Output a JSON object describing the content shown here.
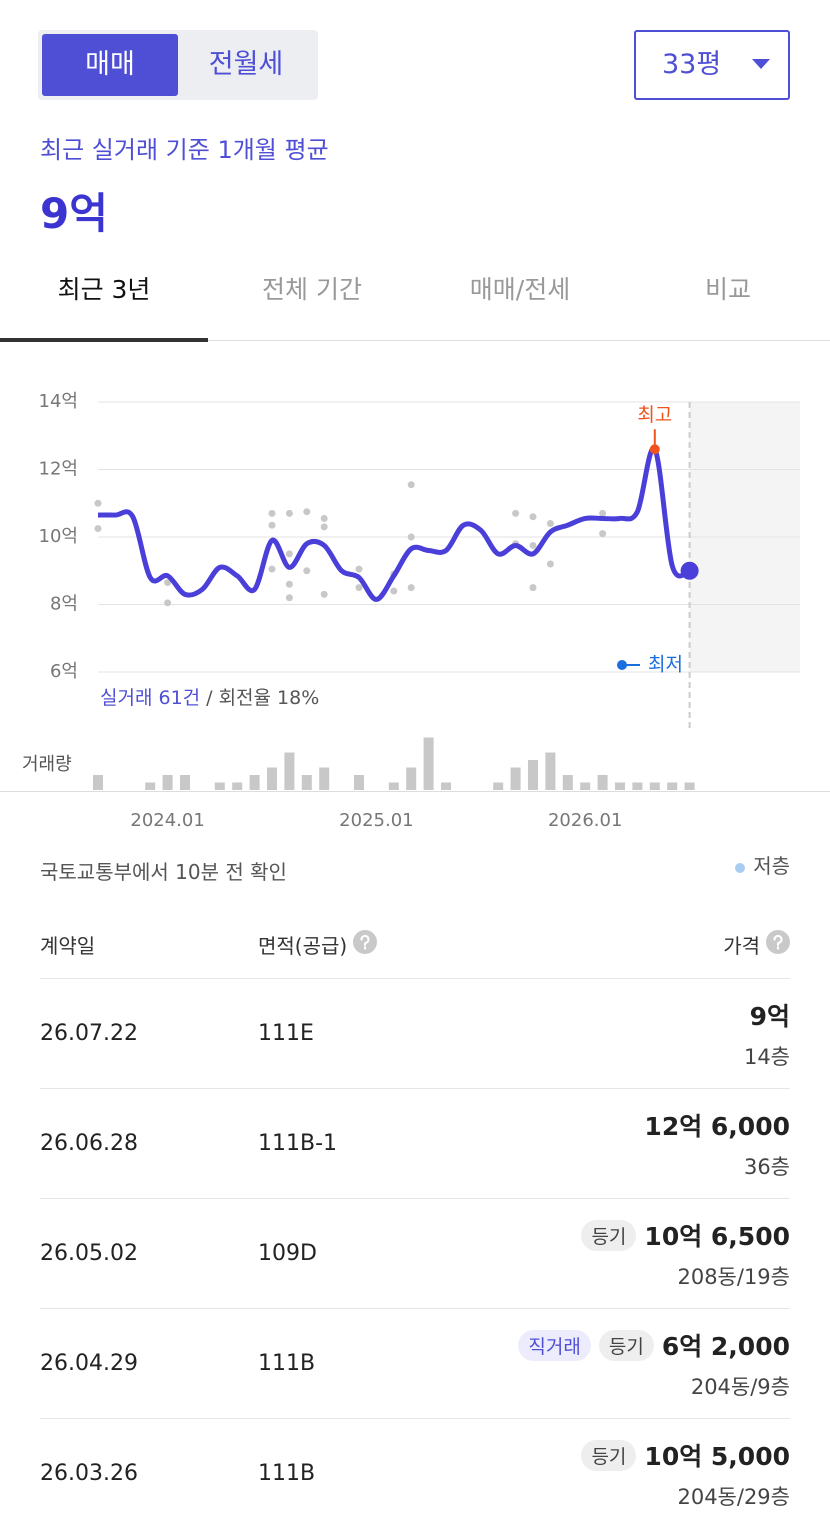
{
  "header": {
    "trade_tabs": [
      "매매",
      "전월세"
    ],
    "active_trade_tab": 0,
    "size_select": "33평"
  },
  "summary": {
    "caption": "최근 실거래 기준 1개월 평균",
    "value": "9억"
  },
  "period_tabs": [
    "최근 3년",
    "전체 기간",
    "매매/전세",
    "비교"
  ],
  "active_period_tab": 0,
  "chart": {
    "type": "line",
    "color": "#4a3fd8",
    "x": [
      "2023.09",
      "2023.10",
      "2023.11",
      "2023.12",
      "2024.01",
      "2024.02",
      "2024.03",
      "2024.04",
      "2024.05",
      "2024.06",
      "2024.07",
      "2024.08",
      "2024.09",
      "2024.10",
      "2024.11",
      "2024.12",
      "2025.01",
      "2025.02",
      "2025.03",
      "2025.04",
      "2025.05",
      "2025.06",
      "2025.07",
      "2025.08",
      "2025.09",
      "2025.10",
      "2025.11",
      "2025.12",
      "2026.01",
      "2026.02",
      "2026.03",
      "2026.04",
      "2026.05",
      "2026.06",
      "2026.07"
    ],
    "values": [
      10.65,
      10.65,
      10.6,
      8.8,
      8.85,
      8.3,
      8.45,
      9.1,
      8.85,
      8.45,
      9.9,
      9.1,
      9.8,
      9.75,
      9.0,
      8.8,
      8.15,
      8.85,
      9.65,
      9.6,
      9.6,
      10.35,
      10.2,
      9.5,
      9.75,
      9.5,
      10.15,
      10.35,
      10.55,
      10.55,
      10.55,
      10.75,
      12.6,
      9.15,
      9.0
    ],
    "ylim": [
      6,
      14
    ],
    "yticks": [
      {
        "value": 6,
        "label": "6억"
      },
      {
        "value": 8,
        "label": "8억"
      },
      {
        "value": 10,
        "label": "10억"
      },
      {
        "value": 12,
        "label": "12억"
      },
      {
        "value": 14,
        "label": "14억"
      }
    ],
    "xticks": [
      "2024.01",
      "2025.01",
      "2026.01"
    ],
    "grid": true,
    "points": {
      "color": "#c8c8c8",
      "x": [
        "2023.09",
        "2023.09",
        "2024.01",
        "2024.01",
        "2024.07",
        "2024.07",
        "2024.07",
        "2024.08",
        "2024.08",
        "2024.08",
        "2024.08",
        "2024.09",
        "2024.09",
        "2024.10",
        "2024.10",
        "2024.10",
        "2024.12",
        "2024.12",
        "2025.02",
        "2025.02",
        "2025.03",
        "2025.03",
        "2025.03",
        "2025.09",
        "2025.09",
        "2025.10",
        "2025.10",
        "2025.10",
        "2025.11",
        "2025.11",
        "2026.02",
        "2026.02"
      ],
      "values": [
        11.0,
        10.25,
        8.65,
        8.05,
        10.7,
        10.35,
        9.05,
        10.7,
        9.5,
        8.6,
        8.2,
        10.75,
        9.0,
        10.55,
        10.3,
        8.3,
        9.05,
        8.5,
        8.9,
        8.4,
        11.55,
        10.0,
        8.5,
        10.7,
        9.8,
        10.6,
        9.75,
        8.5,
        10.4,
        9.2,
        10.7,
        10.1
      ]
    },
    "volume": {
      "label": "거래량",
      "color": "#c8c8c8",
      "ylim": [
        0,
        8
      ],
      "values": [
        2,
        0,
        0,
        1,
        2,
        2,
        0,
        1,
        1,
        2,
        3,
        5,
        2,
        3,
        0,
        2,
        0,
        1,
        3,
        7,
        1,
        0,
        0,
        1,
        3,
        4,
        5,
        2,
        1,
        2,
        1,
        1,
        1,
        1,
        1
      ]
    },
    "high_label": "최고",
    "low_label": "최저",
    "stats": {
      "count": "실거래 61건",
      "rate": "/ 회전율 18%"
    }
  },
  "source": "국토교통부에서 10분 전 확인",
  "legend": "저층",
  "table": {
    "headers": [
      "계약일",
      "면적(공급)",
      "가격"
    ],
    "rows": [
      {
        "date": "26.07.22",
        "area": "111E",
        "tags": [],
        "price": "9억",
        "floor": "14층"
      },
      {
        "date": "26.06.28",
        "area": "111B-1",
        "tags": [],
        "price": "12억 6,000",
        "floor": "36층"
      },
      {
        "date": "26.05.02",
        "area": "109D",
        "tags": [
          "등기"
        ],
        "price": "10억 6,500",
        "floor": "208동/19층"
      },
      {
        "date": "26.04.29",
        "area": "111B",
        "tags": [
          "직거래",
          "등기"
        ],
        "price": "6억 2,000",
        "floor": "204동/9층"
      },
      {
        "date": "26.03.26",
        "area": "111B",
        "tags": [
          "등기"
        ],
        "price": "10억 5,000",
        "floor": "204동/29층"
      }
    ]
  }
}
